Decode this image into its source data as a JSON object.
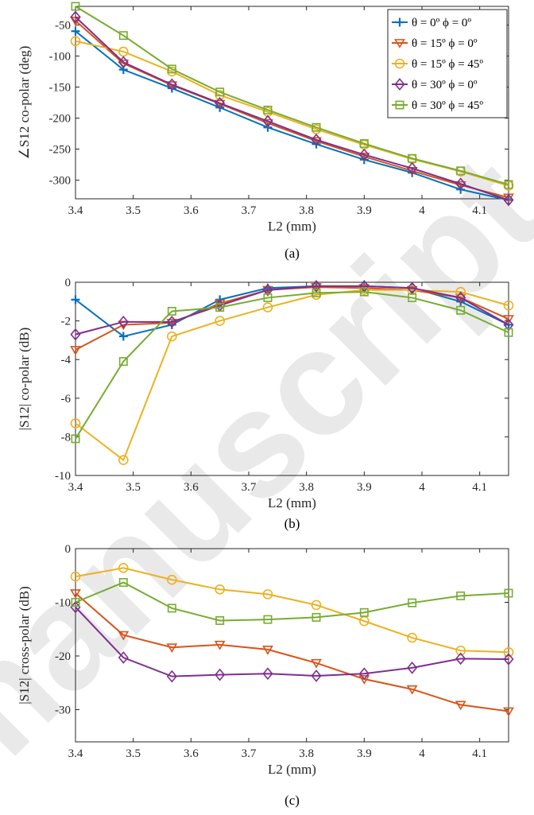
{
  "watermark": "manuscript",
  "colors": {
    "s1": "#0072BD",
    "s2": "#D95319",
    "s3": "#EDB120",
    "s4": "#7E2F8E",
    "s5": "#77AC30",
    "axis": "#262626",
    "watermark": "#e9e9e9"
  },
  "chart_data": [
    {
      "type": "line",
      "caption": "(a)",
      "xlabel": "L2 (mm)",
      "ylabel": "∠S12 co-polar (deg)",
      "xlim": [
        3.4,
        4.15
      ],
      "ylim": [
        -330,
        -20
      ],
      "xticks": [
        3.4,
        3.5,
        3.6,
        3.7,
        3.8,
        3.9,
        4,
        4.1
      ],
      "xtick_labels": [
        "3.4",
        "3.5",
        "3.6",
        "3.7",
        "3.8",
        "3.9",
        "4",
        "4.1"
      ],
      "yticks": [
        -50,
        -100,
        -150,
        -200,
        -250,
        -300
      ],
      "ytick_labels": [
        "-50",
        "-100",
        "-150",
        "-200",
        "-250",
        "-300"
      ],
      "legend": "top-right",
      "grid": false,
      "x": [
        3.4,
        3.483,
        3.567,
        3.65,
        3.733,
        3.817,
        3.9,
        3.983,
        4.067,
        4.15
      ],
      "series": [
        {
          "name": "θ = 0º ϕ = 0º",
          "marker": "plus",
          "color": "#0072BD",
          "values": [
            -60,
            -122,
            -152,
            -183,
            -215,
            -242,
            -267,
            -288,
            -315,
            -332
          ]
        },
        {
          "name": "θ = 15º ϕ = 0º",
          "marker": "triangle-down",
          "color": "#D95319",
          "values": [
            -43,
            -112,
            -147,
            -177,
            -208,
            -237,
            -262,
            -285,
            -308,
            -328
          ]
        },
        {
          "name": "θ = 15º ϕ = 45º",
          "marker": "circle",
          "color": "#EDB120",
          "values": [
            -76,
            -93,
            -125,
            -163,
            -190,
            -218,
            -243,
            -266,
            -286,
            -309
          ]
        },
        {
          "name": "θ = 30º ϕ = 0º",
          "marker": "diamond",
          "color": "#7E2F8E",
          "values": [
            -37,
            -110,
            -146,
            -176,
            -205,
            -235,
            -259,
            -281,
            -306,
            -332
          ]
        },
        {
          "name": "θ = 30º ϕ = 45º",
          "marker": "square",
          "color": "#77AC30",
          "values": [
            -20,
            -67,
            -121,
            -158,
            -187,
            -215,
            -241,
            -265,
            -285,
            -307
          ]
        }
      ]
    },
    {
      "type": "line",
      "caption": "(b)",
      "xlabel": "L2 (mm)",
      "ylabel": "|S12| co-polar (dB)",
      "xlim": [
        3.4,
        4.15
      ],
      "ylim": [
        -10,
        0
      ],
      "xticks": [
        3.4,
        3.5,
        3.6,
        3.7,
        3.8,
        3.9,
        4,
        4.1
      ],
      "xtick_labels": [
        "3.4",
        "3.5",
        "3.6",
        "3.7",
        "3.8",
        "3.9",
        "4",
        "4.1"
      ],
      "yticks": [
        0,
        -2,
        -4,
        -6,
        -8,
        -10
      ],
      "ytick_labels": [
        "0",
        "-2",
        "-4",
        "-6",
        "-8",
        "-10"
      ],
      "grid": false,
      "x": [
        3.4,
        3.483,
        3.567,
        3.65,
        3.733,
        3.817,
        3.9,
        3.983,
        4.067,
        4.15
      ],
      "series": [
        {
          "marker": "plus",
          "color": "#0072BD",
          "values": [
            -0.9,
            -2.8,
            -2.2,
            -0.9,
            -0.3,
            -0.2,
            -0.2,
            -0.3,
            -1.0,
            -2.2
          ]
        },
        {
          "marker": "triangle-down",
          "color": "#D95319",
          "values": [
            -3.5,
            -2.2,
            -2.1,
            -1.1,
            -0.4,
            -0.25,
            -0.3,
            -0.4,
            -0.8,
            -1.9
          ]
        },
        {
          "marker": "circle",
          "color": "#EDB120",
          "values": [
            -7.3,
            -9.2,
            -2.8,
            -2.0,
            -1.3,
            -0.65,
            -0.4,
            -0.4,
            -0.5,
            -1.2
          ]
        },
        {
          "marker": "diamond",
          "color": "#7E2F8E",
          "values": [
            -2.7,
            -2.05,
            -2.05,
            -1.2,
            -0.4,
            -0.2,
            -0.2,
            -0.3,
            -0.8,
            -2.2
          ]
        },
        {
          "marker": "square",
          "color": "#77AC30",
          "values": [
            -8.1,
            -4.1,
            -1.5,
            -1.3,
            -0.8,
            -0.55,
            -0.5,
            -0.8,
            -1.45,
            -2.6
          ]
        }
      ]
    },
    {
      "type": "line",
      "caption": "(c)",
      "xlabel": "L2 (mm)",
      "ylabel": "|S12| cross-polar (dB)",
      "xlim": [
        3.4,
        4.15
      ],
      "ylim": [
        -36,
        0
      ],
      "xticks": [
        3.4,
        3.5,
        3.6,
        3.7,
        3.8,
        3.9,
        4,
        4.1
      ],
      "xtick_labels": [
        "3.4",
        "3.5",
        "3.6",
        "3.7",
        "3.8",
        "3.9",
        "4",
        "4.1"
      ],
      "yticks": [
        0,
        -10,
        -20,
        -30
      ],
      "ytick_labels": [
        "0",
        "-10",
        "-20",
        "-30"
      ],
      "grid": false,
      "x": [
        3.4,
        3.483,
        3.567,
        3.65,
        3.733,
        3.817,
        3.9,
        3.983,
        4.067,
        4.15
      ],
      "series": [
        {
          "marker": "triangle-down",
          "color": "#D95319",
          "values": [
            -8.3,
            -16.1,
            -18.4,
            -17.9,
            -18.8,
            -21.3,
            -24.3,
            -26.2,
            -29.1,
            -30.3
          ]
        },
        {
          "marker": "circle",
          "color": "#EDB120",
          "values": [
            -5.2,
            -3.6,
            -5.8,
            -7.6,
            -8.5,
            -10.5,
            -13.5,
            -16.6,
            -19.0,
            -19.3
          ]
        },
        {
          "marker": "diamond",
          "color": "#7E2F8E",
          "values": [
            -10.9,
            -20.3,
            -23.8,
            -23.5,
            -23.3,
            -23.7,
            -23.3,
            -22.2,
            -20.5,
            -20.6
          ]
        },
        {
          "marker": "square",
          "color": "#77AC30",
          "values": [
            -10.0,
            -6.3,
            -11.1,
            -13.4,
            -13.2,
            -12.8,
            -11.9,
            -10.1,
            -8.8,
            -8.3
          ]
        }
      ]
    }
  ]
}
